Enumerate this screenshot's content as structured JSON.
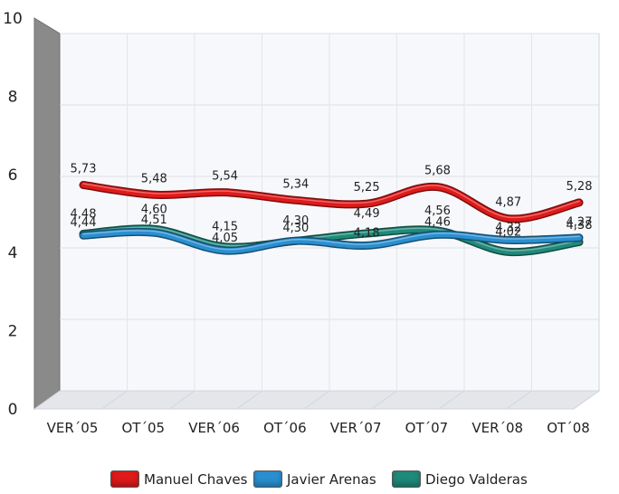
{
  "chart_data": {
    "type": "line",
    "categories": [
      "VER´05",
      "OT´05",
      "VER´06",
      "OT´06",
      "VER´07",
      "OT´07",
      "VER´08",
      "OT´08"
    ],
    "ylim": [
      0,
      10
    ],
    "yticks": [
      "0",
      "2",
      "4",
      "6",
      "8",
      "10"
    ],
    "grid": true,
    "legend_position": "bottom",
    "series": [
      {
        "name": "Manuel Chaves",
        "color": "#e01a1a",
        "values": [
          5.73,
          5.48,
          5.54,
          5.34,
          5.25,
          5.68,
          4.87,
          5.28
        ],
        "labels": [
          "5,73",
          "5,48",
          "5,54",
          "5,34",
          "5,25",
          "5,68",
          "4,87",
          "5,28"
        ]
      },
      {
        "name": "Javier Arenas",
        "color": "#2a8fd0",
        "values": [
          4.44,
          4.51,
          4.05,
          4.3,
          4.18,
          4.46,
          4.32,
          4.38
        ],
        "labels": [
          "4,44",
          "4,51",
          "4,05",
          "4,30",
          "4,18",
          "4,46",
          "4,32",
          "4,38"
        ]
      },
      {
        "name": "Diego Valderas",
        "color": "#1f8a7a",
        "values": [
          4.48,
          4.6,
          4.15,
          4.3,
          4.49,
          4.56,
          4.02,
          4.27
        ],
        "labels": [
          "4,48",
          "4,60",
          "4,15",
          "4,30",
          "4,49",
          "4,56",
          "4,02",
          "4,27"
        ]
      }
    ]
  }
}
